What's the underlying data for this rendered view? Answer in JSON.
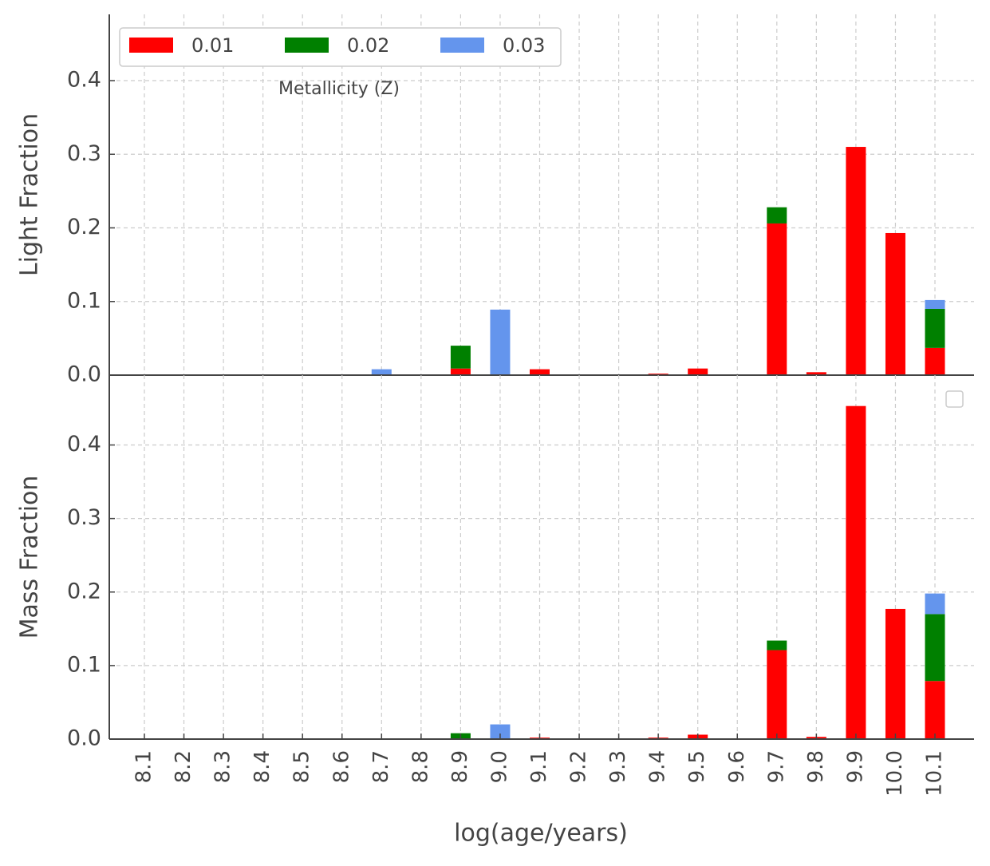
{
  "chart_data": [
    {
      "type": "bar",
      "stacked": true,
      "ylabel": "Light Fraction",
      "ylim": [
        0,
        0.49
      ],
      "yticks": [
        {
          "value": 0,
          "label": "0.0"
        },
        0.1,
        0.2,
        0.3,
        0.4
      ],
      "grid": true,
      "legend": {
        "title": "Metallicity (Z)",
        "position": "upper left",
        "columns": 3
      },
      "series": [
        {
          "name": "0.01",
          "color": "#ff0000",
          "values": [
            0,
            0,
            0,
            0,
            0,
            0,
            0,
            0,
            0.009,
            0,
            0.008,
            0,
            0,
            0.002,
            0.009,
            0,
            0.206,
            0.004,
            0.31,
            0.193,
            0.037
          ]
        },
        {
          "name": "0.02",
          "color": "#008000",
          "values": [
            0,
            0,
            0,
            0,
            0,
            0,
            0,
            0,
            0.031,
            0,
            0,
            0,
            0,
            0,
            0,
            0,
            0.022,
            0,
            0,
            0,
            0.053
          ]
        },
        {
          "name": "0.03",
          "color": "#6495ed",
          "values": [
            0,
            0,
            0,
            0,
            0,
            0,
            0.008,
            0,
            0,
            0.089,
            0,
            0,
            0,
            0,
            0,
            0,
            0,
            0,
            0,
            0,
            0.012
          ]
        }
      ]
    },
    {
      "type": "bar",
      "stacked": true,
      "ylabel": "Mass Fraction",
      "xlabel": "log(age/years)",
      "categories": [
        "8.1",
        "8.2",
        "8.3",
        "8.4",
        "8.5",
        "8.6",
        "8.7",
        "8.8",
        "8.9",
        "9.0",
        "9.1",
        "9.2",
        "9.3",
        "9.4",
        "9.5",
        "9.6",
        "9.7",
        "9.8",
        "9.9",
        "10.0",
        "10.1"
      ],
      "ylim": [
        0,
        0.495
      ],
      "yticks": [
        {
          "value": 0,
          "label": "0.0"
        },
        0.1,
        0.2,
        0.3,
        0.4
      ],
      "grid": true,
      "series": [
        {
          "color": "#ff0000",
          "values": [
            0,
            0,
            0,
            0,
            0,
            0,
            0,
            0,
            0,
            0,
            0.002,
            0,
            0,
            0.002,
            0.006,
            0,
            0.121,
            0.003,
            0.453,
            0.177,
            0.079
          ]
        },
        {
          "color": "#008000",
          "values": [
            0,
            0,
            0,
            0,
            0,
            0,
            0,
            0,
            0.008,
            0,
            0,
            0,
            0,
            0,
            0,
            0,
            0.013,
            0,
            0,
            0,
            0.091
          ]
        },
        {
          "color": "#6495ed",
          "values": [
            0,
            0,
            0,
            0,
            0,
            0,
            0,
            0,
            0,
            0.02,
            0,
            0,
            0,
            0,
            0,
            0,
            0,
            0,
            0,
            0,
            0.028
          ]
        }
      ]
    }
  ]
}
